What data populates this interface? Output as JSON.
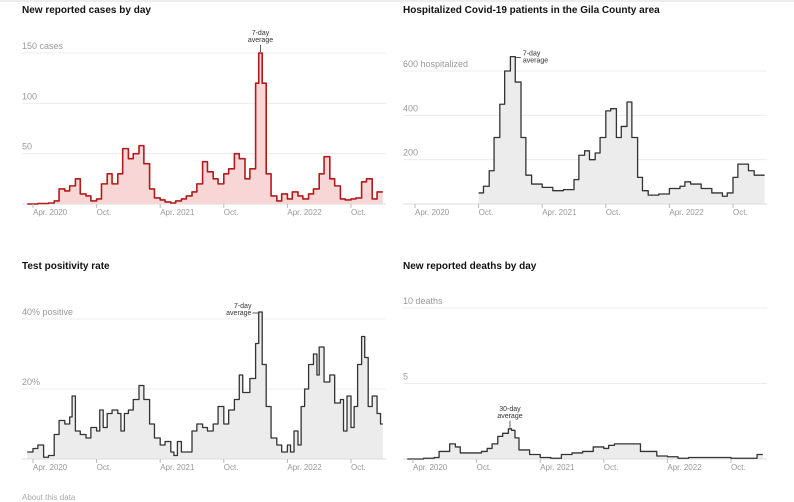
{
  "footer": {
    "about_label": "About this data"
  },
  "chart_data": [
    {
      "id": "cases",
      "type": "area",
      "title": "New reported cases by day",
      "annotation": [
        "7-day",
        "average"
      ],
      "yticks": [
        {
          "value": 50,
          "label": "50"
        },
        {
          "value": 100,
          "label": "100"
        },
        {
          "value": 150,
          "label": "150 cases"
        }
      ],
      "xticks": [
        {
          "date": "2020-04-01",
          "label": "Apr. 2020"
        },
        {
          "date": "2020-10-01",
          "label": "Oct."
        },
        {
          "date": "2021-04-01",
          "label": "Apr. 2021"
        },
        {
          "date": "2021-10-01",
          "label": "Oct."
        },
        {
          "date": "2022-04-01",
          "label": "Apr. 2022"
        },
        {
          "date": "2022-10-01",
          "label": "Oct."
        }
      ],
      "ylim": [
        0,
        150
      ],
      "grid": true,
      "colors": {
        "line": "#b31b1b",
        "fill": "#f8d6d6"
      },
      "points": [
        [
          "2020-03-15",
          0
        ],
        [
          "2020-04-15",
          0.5
        ],
        [
          "2020-05-15",
          1
        ],
        [
          "2020-06-01",
          3
        ],
        [
          "2020-06-15",
          15
        ],
        [
          "2020-07-01",
          13
        ],
        [
          "2020-07-15",
          18
        ],
        [
          "2020-08-01",
          25
        ],
        [
          "2020-08-15",
          10
        ],
        [
          "2020-09-01",
          8
        ],
        [
          "2020-09-15",
          3
        ],
        [
          "2020-10-01",
          5
        ],
        [
          "2020-10-15",
          20
        ],
        [
          "2020-11-01",
          30
        ],
        [
          "2020-11-15",
          20
        ],
        [
          "2020-12-01",
          30
        ],
        [
          "2020-12-15",
          55
        ],
        [
          "2021-01-01",
          45
        ],
        [
          "2021-01-15",
          50
        ],
        [
          "2021-02-01",
          58
        ],
        [
          "2021-02-15",
          40
        ],
        [
          "2021-03-01",
          15
        ],
        [
          "2021-03-15",
          6
        ],
        [
          "2021-04-01",
          4
        ],
        [
          "2021-04-15",
          2
        ],
        [
          "2021-05-01",
          1
        ],
        [
          "2021-05-15",
          3
        ],
        [
          "2021-06-01",
          5
        ],
        [
          "2021-06-15",
          8
        ],
        [
          "2021-07-01",
          12
        ],
        [
          "2021-07-15",
          20
        ],
        [
          "2021-08-01",
          42
        ],
        [
          "2021-08-15",
          32
        ],
        [
          "2021-09-01",
          25
        ],
        [
          "2021-09-15",
          20
        ],
        [
          "2021-10-01",
          30
        ],
        [
          "2021-10-15",
          35
        ],
        [
          "2021-11-01",
          50
        ],
        [
          "2021-11-15",
          45
        ],
        [
          "2021-12-01",
          25
        ],
        [
          "2021-12-15",
          35
        ],
        [
          "2022-01-01",
          120
        ],
        [
          "2022-01-10",
          150
        ],
        [
          "2022-01-20",
          120
        ],
        [
          "2022-02-01",
          30
        ],
        [
          "2022-02-15",
          8
        ],
        [
          "2022-03-01",
          3
        ],
        [
          "2022-03-15",
          10
        ],
        [
          "2022-04-01",
          5
        ],
        [
          "2022-04-15",
          12
        ],
        [
          "2022-05-01",
          8
        ],
        [
          "2022-05-15",
          5
        ],
        [
          "2022-06-01",
          10
        ],
        [
          "2022-06-15",
          15
        ],
        [
          "2022-07-01",
          30
        ],
        [
          "2022-07-15",
          47
        ],
        [
          "2022-08-01",
          25
        ],
        [
          "2022-08-15",
          18
        ],
        [
          "2022-09-01",
          5
        ],
        [
          "2022-09-15",
          4
        ],
        [
          "2022-10-01",
          5
        ],
        [
          "2022-10-15",
          6
        ],
        [
          "2022-11-01",
          22
        ],
        [
          "2022-11-15",
          25
        ],
        [
          "2022-12-01",
          5
        ],
        [
          "2022-12-15",
          12
        ],
        [
          "2023-01-01",
          12
        ]
      ]
    },
    {
      "id": "hospitalized",
      "type": "area",
      "title": "Hospitalized Covid-19 patients in the Gila County area",
      "annotation": [
        "7-day",
        "average"
      ],
      "yticks": [
        {
          "value": 200,
          "label": "200"
        },
        {
          "value": 400,
          "label": "400"
        },
        {
          "value": 600,
          "label": "600 hospitalized"
        }
      ],
      "xticks": [
        {
          "date": "2020-04-01",
          "label": "Apr. 2020"
        },
        {
          "date": "2020-10-01",
          "label": "Oct."
        },
        {
          "date": "2021-04-01",
          "label": "Apr. 2021"
        },
        {
          "date": "2021-10-01",
          "label": "Oct."
        },
        {
          "date": "2022-04-01",
          "label": "Apr. 2022"
        },
        {
          "date": "2022-10-01",
          "label": "Oct."
        }
      ],
      "ylim": [
        0,
        600
      ],
      "grid": true,
      "colors": {
        "line": "#333333",
        "fill": "#ececec"
      },
      "points": [
        [
          "2020-10-01",
          50
        ],
        [
          "2020-10-15",
          80
        ],
        [
          "2020-11-01",
          150
        ],
        [
          "2020-11-15",
          300
        ],
        [
          "2020-12-01",
          450
        ],
        [
          "2020-12-15",
          600
        ],
        [
          "2021-01-01",
          665
        ],
        [
          "2021-01-15",
          550
        ],
        [
          "2021-02-01",
          300
        ],
        [
          "2021-02-15",
          130
        ],
        [
          "2021-03-01",
          90
        ],
        [
          "2021-04-01",
          75
        ],
        [
          "2021-05-01",
          60
        ],
        [
          "2021-06-01",
          65
        ],
        [
          "2021-07-01",
          110
        ],
        [
          "2021-07-15",
          220
        ],
        [
          "2021-08-01",
          240
        ],
        [
          "2021-08-15",
          200
        ],
        [
          "2021-09-01",
          230
        ],
        [
          "2021-09-15",
          300
        ],
        [
          "2021-10-01",
          420
        ],
        [
          "2021-10-15",
          430
        ],
        [
          "2021-11-01",
          300
        ],
        [
          "2021-11-15",
          350
        ],
        [
          "2021-12-01",
          460
        ],
        [
          "2021-12-15",
          300
        ],
        [
          "2022-01-01",
          120
        ],
        [
          "2022-01-15",
          60
        ],
        [
          "2022-02-01",
          40
        ],
        [
          "2022-03-01",
          45
        ],
        [
          "2022-04-01",
          70
        ],
        [
          "2022-05-01",
          80
        ],
        [
          "2022-05-15",
          100
        ],
        [
          "2022-06-01",
          90
        ],
        [
          "2022-07-01",
          70
        ],
        [
          "2022-08-01",
          50
        ],
        [
          "2022-09-01",
          35
        ],
        [
          "2022-09-15",
          50
        ],
        [
          "2022-10-01",
          120
        ],
        [
          "2022-10-15",
          180
        ],
        [
          "2022-11-01",
          180
        ],
        [
          "2022-11-15",
          150
        ],
        [
          "2022-12-01",
          130
        ],
        [
          "2022-12-31",
          130
        ]
      ]
    },
    {
      "id": "positivity",
      "type": "area",
      "title": "Test positivity rate",
      "annotation": [
        "7-day",
        "average"
      ],
      "yticks": [
        {
          "value": 20,
          "label": "20%"
        },
        {
          "value": 40,
          "label": "40% positive"
        }
      ],
      "xticks": [
        {
          "date": "2020-04-01",
          "label": "Apr. 2020"
        },
        {
          "date": "2020-10-01",
          "label": "Oct."
        },
        {
          "date": "2021-04-01",
          "label": "Apr. 2021"
        },
        {
          "date": "2021-10-01",
          "label": "Oct."
        },
        {
          "date": "2022-04-01",
          "label": "Apr. 2022"
        },
        {
          "date": "2022-10-01",
          "label": "Oct."
        }
      ],
      "ylim": [
        0,
        40
      ],
      "grid": true,
      "colors": {
        "line": "#333333",
        "fill": "#ececec"
      },
      "points": [
        [
          "2020-03-15",
          2
        ],
        [
          "2020-04-01",
          3
        ],
        [
          "2020-04-15",
          4
        ],
        [
          "2020-05-01",
          0.5
        ],
        [
          "2020-05-15",
          1
        ],
        [
          "2020-06-01",
          7
        ],
        [
          "2020-06-15",
          11
        ],
        [
          "2020-07-01",
          10
        ],
        [
          "2020-07-15",
          12
        ],
        [
          "2020-07-22",
          18
        ],
        [
          "2020-08-01",
          8
        ],
        [
          "2020-08-15",
          7
        ],
        [
          "2020-09-01",
          6
        ],
        [
          "2020-09-15",
          9
        ],
        [
          "2020-10-01",
          8
        ],
        [
          "2020-10-10",
          14
        ],
        [
          "2020-10-20",
          9
        ],
        [
          "2020-11-01",
          13
        ],
        [
          "2020-11-15",
          14
        ],
        [
          "2020-12-01",
          13
        ],
        [
          "2020-12-10",
          8
        ],
        [
          "2020-12-20",
          13
        ],
        [
          "2021-01-01",
          14
        ],
        [
          "2021-01-15",
          17
        ],
        [
          "2021-02-01",
          21
        ],
        [
          "2021-02-15",
          17
        ],
        [
          "2021-03-01",
          10
        ],
        [
          "2021-03-15",
          6
        ],
        [
          "2021-04-01",
          4
        ],
        [
          "2021-04-15",
          5
        ],
        [
          "2021-05-01",
          2
        ],
        [
          "2021-05-10",
          1
        ],
        [
          "2021-05-20",
          5
        ],
        [
          "2021-06-01",
          2
        ],
        [
          "2021-06-15",
          2
        ],
        [
          "2021-07-01",
          8
        ],
        [
          "2021-07-15",
          10
        ],
        [
          "2021-08-01",
          9
        ],
        [
          "2021-08-15",
          8
        ],
        [
          "2021-09-01",
          10
        ],
        [
          "2021-09-15",
          15
        ],
        [
          "2021-10-01",
          10
        ],
        [
          "2021-10-15",
          14
        ],
        [
          "2021-11-01",
          17
        ],
        [
          "2021-11-15",
          24
        ],
        [
          "2021-11-25",
          19
        ],
        [
          "2021-12-01",
          19
        ],
        [
          "2021-12-15",
          23
        ],
        [
          "2022-01-01",
          33
        ],
        [
          "2022-01-10",
          42
        ],
        [
          "2022-01-20",
          27
        ],
        [
          "2022-02-01",
          15
        ],
        [
          "2022-02-15",
          6
        ],
        [
          "2022-03-01",
          4
        ],
        [
          "2022-03-15",
          2
        ],
        [
          "2022-04-01",
          4
        ],
        [
          "2022-04-10",
          2
        ],
        [
          "2022-04-20",
          8
        ],
        [
          "2022-05-01",
          4
        ],
        [
          "2022-05-10",
          15
        ],
        [
          "2022-05-20",
          20
        ],
        [
          "2022-06-01",
          27
        ],
        [
          "2022-06-15",
          30
        ],
        [
          "2022-06-25",
          24
        ],
        [
          "2022-07-01",
          32
        ],
        [
          "2022-07-15",
          22
        ],
        [
          "2022-08-01",
          24
        ],
        [
          "2022-08-15",
          16
        ],
        [
          "2022-09-01",
          17
        ],
        [
          "2022-09-10",
          8
        ],
        [
          "2022-09-20",
          18
        ],
        [
          "2022-10-01",
          9
        ],
        [
          "2022-10-10",
          15
        ],
        [
          "2022-10-20",
          27
        ],
        [
          "2022-11-01",
          35
        ],
        [
          "2022-11-10",
          29
        ],
        [
          "2022-11-20",
          15
        ],
        [
          "2022-12-01",
          18
        ],
        [
          "2022-12-15",
          13
        ],
        [
          "2022-12-25",
          10
        ],
        [
          "2023-01-01",
          10
        ]
      ]
    },
    {
      "id": "deaths",
      "type": "area",
      "title": "New reported deaths by day",
      "annotation": [
        "30-day",
        "average"
      ],
      "yticks": [
        {
          "value": 5,
          "label": "5"
        },
        {
          "value": 10,
          "label": "10 deaths"
        }
      ],
      "xticks": [
        {
          "date": "2020-04-01",
          "label": "Apr. 2020"
        },
        {
          "date": "2020-10-01",
          "label": "Oct."
        },
        {
          "date": "2021-04-01",
          "label": "Apr. 2021"
        },
        {
          "date": "2021-10-01",
          "label": "Oct."
        },
        {
          "date": "2022-04-01",
          "label": "Apr. 2022"
        },
        {
          "date": "2022-10-01",
          "label": "Oct."
        }
      ],
      "ylim": [
        0,
        10
      ],
      "grid": true,
      "colors": {
        "line": "#333333",
        "fill": "#ececec"
      },
      "points": [
        [
          "2020-03-15",
          0
        ],
        [
          "2020-05-01",
          0.05
        ],
        [
          "2020-06-01",
          0.1
        ],
        [
          "2020-06-15",
          0.5
        ],
        [
          "2020-07-15",
          1
        ],
        [
          "2020-08-01",
          0.8
        ],
        [
          "2020-08-15",
          0.4
        ],
        [
          "2020-10-01",
          0.4
        ],
        [
          "2020-10-15",
          0.5
        ],
        [
          "2020-11-01",
          0.7
        ],
        [
          "2020-11-15",
          1
        ],
        [
          "2020-12-01",
          1.5
        ],
        [
          "2020-12-15",
          1.7
        ],
        [
          "2021-01-01",
          2
        ],
        [
          "2021-01-10",
          1.9
        ],
        [
          "2021-01-20",
          1.4
        ],
        [
          "2021-02-01",
          0.6
        ],
        [
          "2021-03-01",
          0.3
        ],
        [
          "2021-04-01",
          0.1
        ],
        [
          "2021-05-01",
          0.05
        ],
        [
          "2021-06-01",
          0.3
        ],
        [
          "2021-07-01",
          0.4
        ],
        [
          "2021-08-01",
          0.5
        ],
        [
          "2021-09-01",
          0.8
        ],
        [
          "2021-10-01",
          0.7
        ],
        [
          "2021-10-15",
          0.9
        ],
        [
          "2021-11-01",
          1.0
        ],
        [
          "2021-12-01",
          1.0
        ],
        [
          "2022-01-01",
          1.0
        ],
        [
          "2022-01-15",
          0.5
        ],
        [
          "2022-02-15",
          0.5
        ],
        [
          "2022-03-01",
          0.2
        ],
        [
          "2022-04-01",
          0.15
        ],
        [
          "2022-05-01",
          0.05
        ],
        [
          "2022-06-01",
          0.1
        ],
        [
          "2022-08-01",
          0.1
        ],
        [
          "2022-10-01",
          0.05
        ],
        [
          "2022-12-01",
          0.05
        ],
        [
          "2022-12-15",
          0.3
        ],
        [
          "2023-01-01",
          0.3
        ]
      ]
    }
  ]
}
